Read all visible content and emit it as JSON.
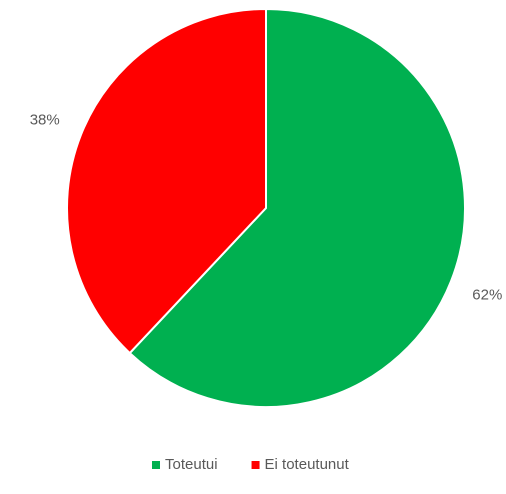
{
  "chart_data": {
    "type": "pie",
    "categories": [
      "Toteutui",
      "Ei toteutunut"
    ],
    "values": [
      62,
      38
    ],
    "value_labels": [
      "62%",
      "38%"
    ],
    "colors": [
      "#00b050",
      "#ff0000"
    ],
    "legend": "bottom"
  }
}
